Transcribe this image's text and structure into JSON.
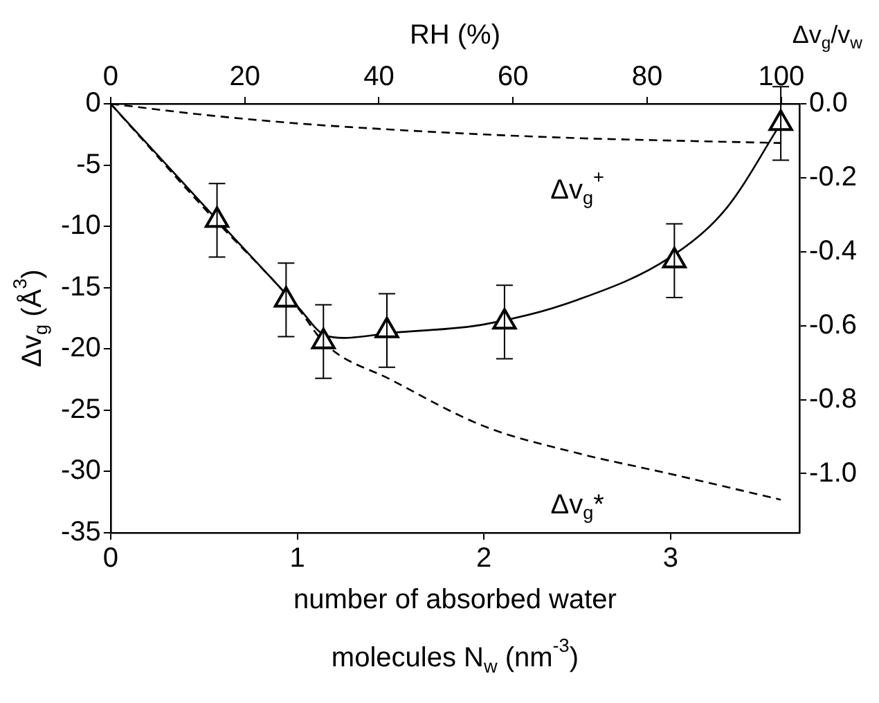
{
  "chart_data": {
    "type": "scatter",
    "xlabel": "number of absorbed water molecules N$_{w}$ (nm$^{-3}$)",
    "ylabel": "Δv$_{g}$ (Å$^{3}$)",
    "x2label": "RH (%)",
    "y2label": "Δv$_{g}$/v$_{w}$",
    "xlim": [
      0,
      3.69
    ],
    "xticks": [
      0,
      1,
      2,
      3
    ],
    "ylim": [
      -35,
      0
    ],
    "yticks": [
      -35,
      -30,
      -25,
      -20,
      -15,
      -10,
      -5,
      0
    ],
    "x2lim": [
      0,
      102.7
    ],
    "x2ticks": [
      0,
      20,
      40,
      60,
      80,
      100
    ],
    "y2lim": [
      -1.16,
      0
    ],
    "y2ticks": [
      {
        "value": -1,
        "label": "-1.0"
      },
      {
        "value": -0.8,
        "label": "-0.8"
      },
      {
        "value": -0.6,
        "label": "-0.6"
      },
      {
        "value": -0.4,
        "label": "-0.4"
      },
      {
        "value": -0.2,
        "label": "-0.2"
      },
      {
        "value": 0,
        "label": "0.0"
      }
    ],
    "grid": false,
    "legend": false,
    "series": [
      {
        "color": "#000000",
        "marker": "triangle",
        "x": [
          0.57,
          0.94,
          1.14,
          1.48,
          2.11,
          3.02,
          3.59
        ],
        "values": [
          -9.5,
          -16,
          -19.4,
          -18.5,
          -17.8,
          -12.8,
          -1.6
        ],
        "errors": [
          3,
          3,
          3,
          3,
          3,
          3,
          3
        ]
      },
      {
        "type": "line",
        "color": "#000000",
        "marker": "none",
        "line_style": "solid",
        "x": [
          0,
          0.5,
          1,
          1.15,
          1.25,
          1.5,
          2,
          2.5,
          3,
          3.3,
          3.59
        ],
        "values": [
          0,
          -8.3,
          -16.5,
          -18.9,
          -19.1,
          -18.7,
          -18,
          -16,
          -12.5,
          -8.5,
          -1.6
        ]
      },
      {
        "type": "line",
        "name": "Δv$_{g}$*",
        "color": "#000000",
        "marker": "none",
        "line_style": "dashed",
        "x": [
          0,
          0.5,
          1,
          1.15,
          1.5,
          2,
          2.5,
          3,
          3.59
        ],
        "values": [
          0,
          -8.5,
          -16.6,
          -19.6,
          -22.5,
          -26.3,
          -28.5,
          -30.2,
          -32.3
        ]
      },
      {
        "type": "line",
        "name": "Δv$_{g}$$^{+}$",
        "color": "#000000",
        "marker": "none",
        "line_style": "dashed",
        "x": [
          0,
          0.5,
          1,
          1.5,
          2,
          2.5,
          3,
          3.59
        ],
        "values": [
          0,
          -0.9,
          -1.6,
          -2.1,
          -2.5,
          -2.8,
          -3,
          -3.2
        ]
      }
    ]
  }
}
